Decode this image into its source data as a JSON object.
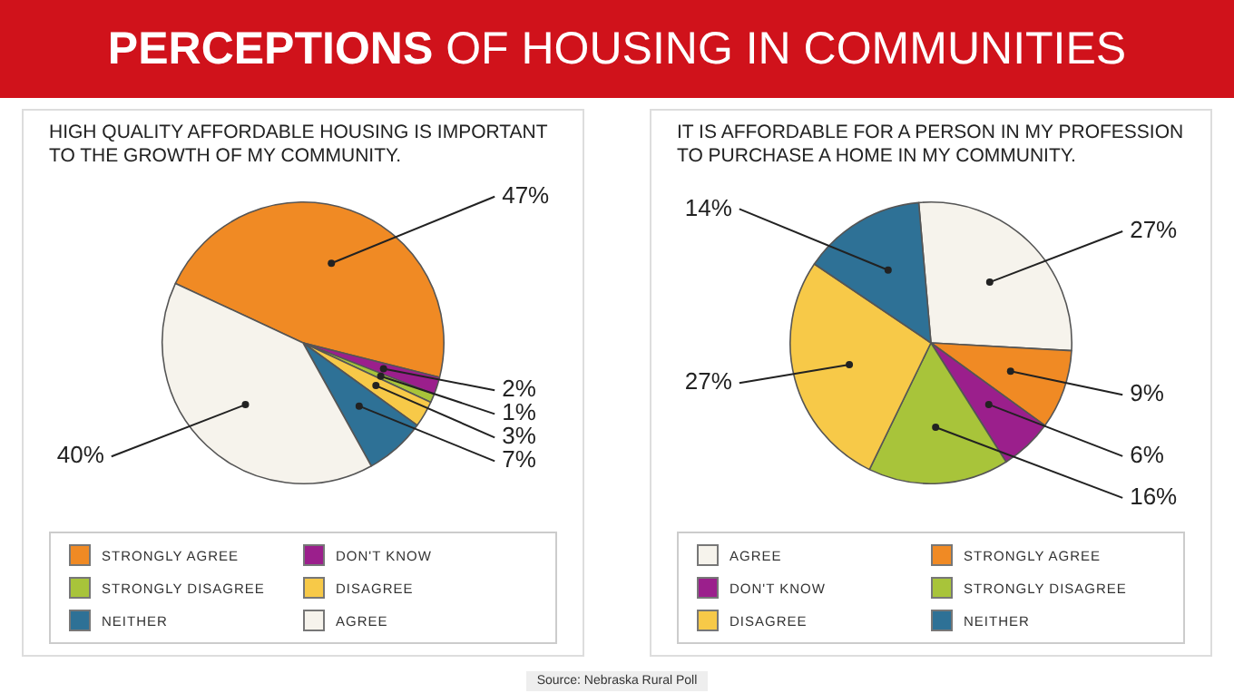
{
  "chart_data": [
    {
      "type": "other",
      "title": "PERCEPTIONS OF HOUSING IN COMMUNITIES",
      "annotations": [
        "Source: Nebraska Rural Poll"
      ]
    },
    {
      "type": "pie",
      "title": "HIGH QUALITY AFFORDABLE HOUSING IS IMPORTANT TO THE GROWTH OF MY COMMUNITY.",
      "categories": [
        "STRONGLY AGREE",
        "DON'T KNOW",
        "STRONGLY DISAGREE",
        "DISAGREE",
        "NEITHER",
        "AGREE"
      ],
      "values": [
        47,
        2,
        1,
        3,
        7,
        40
      ],
      "value_labels": [
        "47%",
        "2%",
        "1%",
        "3%",
        "7%",
        "40%"
      ],
      "colors": [
        "#f08a24",
        "#9b1f8c",
        "#a8c43a",
        "#f7c948",
        "#2e7196",
        "#f6f3ec"
      ],
      "legend": "bottom"
    },
    {
      "type": "pie",
      "title": "IT IS AFFORDABLE FOR A PERSON IN MY PROFESSION TO PURCHASE A HOME IN MY COMMUNITY.",
      "categories": [
        "AGREE",
        "STRONGLY AGREE",
        "DON'T KNOW",
        "STRONGLY DISAGREE",
        "DISAGREE",
        "NEITHER"
      ],
      "values": [
        27,
        9,
        6,
        16,
        27,
        14
      ],
      "value_labels": [
        "27%",
        "9%",
        "6%",
        "16%",
        "27%",
        "14%"
      ],
      "colors": [
        "#f6f3ec",
        "#f08a24",
        "#9b1f8c",
        "#a8c43a",
        "#f7c948",
        "#2e7196"
      ],
      "legend": "bottom"
    }
  ]
}
